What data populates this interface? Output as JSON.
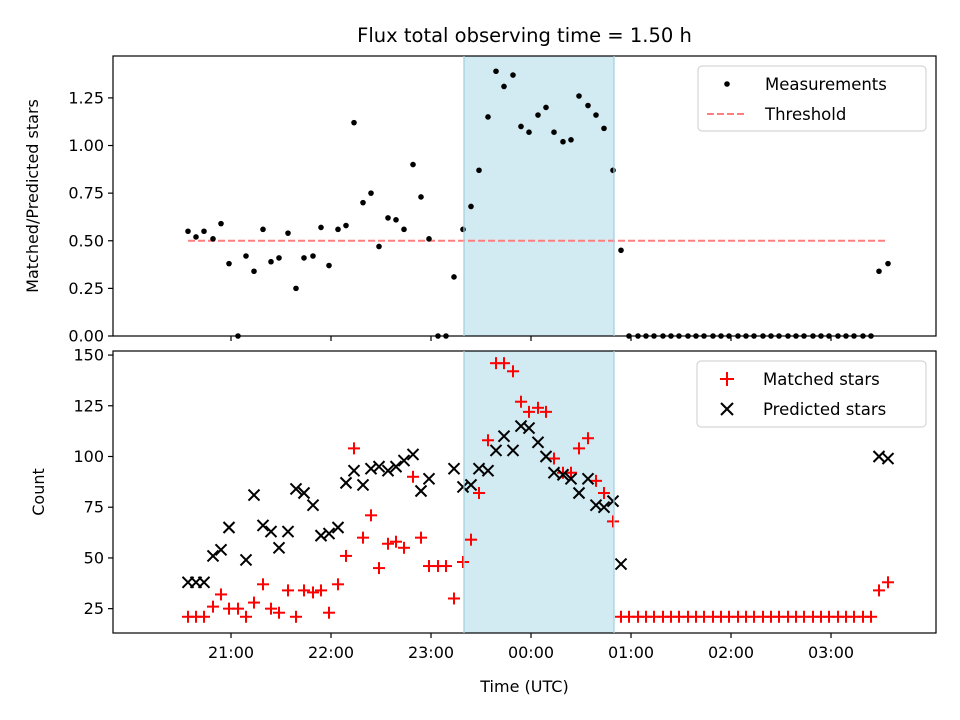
{
  "title": "Flux total observing time = 1.50 h",
  "chart_data": [
    {
      "type": "scatter",
      "panel": "top",
      "xlabel": "",
      "ylabel": "Matched/Predicted stars",
      "ylim": [
        0,
        1.47
      ],
      "yticks": [
        "0.00",
        "0.25",
        "0.50",
        "0.75",
        "1.00",
        "1.25"
      ],
      "ytick_values": [
        0,
        0.25,
        0.5,
        0.75,
        1.0,
        1.25
      ],
      "highlight_span": {
        "start": 23.33,
        "end": 24.83,
        "color": "#add8e6"
      },
      "legend_position": "top-right",
      "series": [
        {
          "name": "Measurements",
          "marker": "dot",
          "color": "#000000",
          "x": [
            20.57,
            20.65,
            20.73,
            20.82,
            20.9,
            20.98,
            21.07,
            21.15,
            21.23,
            21.32,
            21.4,
            21.48,
            21.57,
            21.65,
            21.73,
            21.82,
            21.9,
            21.98,
            22.07,
            22.15,
            22.23,
            22.32,
            22.4,
            22.48,
            22.57,
            22.65,
            22.73,
            22.82,
            22.9,
            22.98,
            23.07,
            23.15,
            23.23,
            23.32,
            23.4,
            23.48,
            23.57,
            23.65,
            23.73,
            23.82,
            23.9,
            23.98,
            24.07,
            24.15,
            24.23,
            24.32,
            24.4,
            24.48,
            24.57,
            24.65,
            24.73,
            24.82,
            24.9,
            24.98,
            25.07,
            25.15,
            25.23,
            25.32,
            25.4,
            25.48,
            25.57,
            25.65,
            25.73,
            25.82,
            25.9,
            25.98,
            26.07,
            26.15,
            26.23,
            26.32,
            26.4,
            26.48,
            26.57,
            26.65,
            26.73,
            26.82,
            26.9,
            26.98,
            27.07,
            27.15,
            27.23,
            27.32,
            27.4,
            27.48,
            27.57
          ],
          "y": [
            0.55,
            0.52,
            0.55,
            0.51,
            0.59,
            0.38,
            0.0,
            0.42,
            0.34,
            0.56,
            0.39,
            0.41,
            0.54,
            0.25,
            0.41,
            0.42,
            0.57,
            0.37,
            0.56,
            0.58,
            1.12,
            0.7,
            0.75,
            0.47,
            0.62,
            0.61,
            0.56,
            0.9,
            0.73,
            0.51,
            0.0,
            0.0,
            0.31,
            0.56,
            0.68,
            0.87,
            1.15,
            1.39,
            1.31,
            1.37,
            1.1,
            1.07,
            1.16,
            1.2,
            1.07,
            1.02,
            1.03,
            1.26,
            1.21,
            1.16,
            1.09,
            0.87,
            0.45,
            0.0,
            0.0,
            0.0,
            0.0,
            0.0,
            0.0,
            0.0,
            0.0,
            0.0,
            0.0,
            0.0,
            0.0,
            0.0,
            0.0,
            0.0,
            0.0,
            0.0,
            0.0,
            0.0,
            0.0,
            0.0,
            0.0,
            0.0,
            0.0,
            0.0,
            0.0,
            0.0,
            0.0,
            0.0,
            0.0,
            0.34,
            0.38
          ]
        },
        {
          "name": "Threshold",
          "style": "dashed",
          "color": "#ff7f7f",
          "x": [
            20.57,
            27.57
          ],
          "y": [
            0.5,
            0.5
          ]
        }
      ]
    },
    {
      "type": "scatter",
      "panel": "bottom",
      "xlabel": "Time (UTC)",
      "ylabel": "Count",
      "ylim": [
        13,
        152
      ],
      "yticks": [
        "25",
        "50",
        "75",
        "100",
        "125",
        "150"
      ],
      "ytick_values": [
        25,
        50,
        75,
        100,
        125,
        150
      ],
      "xlim": [
        19.82,
        28.05
      ],
      "xticks": [
        "21:00",
        "22:00",
        "23:00",
        "00:00",
        "01:00",
        "02:00",
        "03:00"
      ],
      "xtick_values": [
        21,
        22,
        23,
        24,
        25,
        26,
        27
      ],
      "highlight_span": {
        "start": 23.33,
        "end": 24.83,
        "color": "#add8e6"
      },
      "legend_position": "top-right",
      "series": [
        {
          "name": "Matched stars",
          "marker": "plus",
          "color": "#ff0000",
          "x": [
            20.57,
            20.65,
            20.73,
            20.82,
            20.9,
            20.98,
            21.07,
            21.15,
            21.23,
            21.32,
            21.4,
            21.48,
            21.57,
            21.65,
            21.73,
            21.82,
            21.9,
            21.98,
            22.07,
            22.15,
            22.23,
            22.32,
            22.4,
            22.48,
            22.57,
            22.65,
            22.73,
            22.82,
            22.9,
            22.98,
            23.07,
            23.15,
            23.23,
            23.32,
            23.4,
            23.48,
            23.57,
            23.65,
            23.73,
            23.82,
            23.9,
            23.98,
            24.07,
            24.15,
            24.23,
            24.32,
            24.4,
            24.48,
            24.57,
            24.65,
            24.73,
            24.82,
            24.9,
            24.98,
            25.07,
            25.15,
            25.23,
            25.32,
            25.4,
            25.48,
            25.57,
            25.65,
            25.73,
            25.82,
            25.9,
            25.98,
            26.07,
            26.15,
            26.23,
            26.32,
            26.4,
            26.48,
            26.57,
            26.65,
            26.73,
            26.82,
            26.9,
            26.98,
            27.07,
            27.15,
            27.23,
            27.32,
            27.4,
            27.48,
            27.57
          ],
          "y": [
            21,
            21,
            21,
            26,
            32,
            25,
            25,
            21,
            28,
            37,
            25,
            23,
            34,
            21,
            34,
            33,
            34,
            23,
            37,
            51,
            104,
            60,
            71,
            45,
            57,
            58,
            55,
            90,
            60,
            46,
            46,
            46,
            30,
            48,
            59,
            82,
            108,
            146,
            146,
            142,
            127,
            122,
            124,
            122,
            99,
            92,
            92,
            104,
            109,
            88,
            82,
            68,
            21,
            21,
            21,
            21,
            21,
            21,
            21,
            21,
            21,
            21,
            21,
            21,
            21,
            21,
            21,
            21,
            21,
            21,
            21,
            21,
            21,
            21,
            21,
            21,
            21,
            21,
            21,
            21,
            21,
            21,
            21,
            34,
            38
          ]
        },
        {
          "name": "Predicted stars",
          "marker": "x",
          "color": "#000000",
          "x": [
            20.57,
            20.65,
            20.73,
            20.82,
            20.9,
            20.98,
            21.15,
            21.23,
            21.32,
            21.4,
            21.48,
            21.57,
            21.65,
            21.73,
            21.82,
            21.9,
            21.98,
            22.07,
            22.15,
            22.23,
            22.32,
            22.4,
            22.48,
            22.57,
            22.65,
            22.73,
            22.82,
            22.9,
            22.98,
            23.23,
            23.32,
            23.4,
            23.48,
            23.57,
            23.65,
            23.73,
            23.82,
            23.9,
            23.98,
            24.07,
            24.15,
            24.23,
            24.32,
            24.4,
            24.48,
            24.57,
            24.65,
            24.73,
            24.82,
            24.9,
            27.48,
            27.57
          ],
          "y": [
            38,
            38,
            38,
            51,
            54,
            65,
            49,
            81,
            66,
            63,
            55,
            63,
            84,
            82,
            76,
            61,
            62,
            65,
            87,
            93,
            86,
            94,
            95,
            93,
            95,
            98,
            101,
            83,
            89,
            94,
            85,
            86,
            94,
            93,
            103,
            110,
            103,
            115,
            114,
            107,
            100,
            92,
            91,
            89,
            82,
            89,
            76,
            75,
            78,
            47,
            100,
            99
          ]
        }
      ]
    }
  ]
}
